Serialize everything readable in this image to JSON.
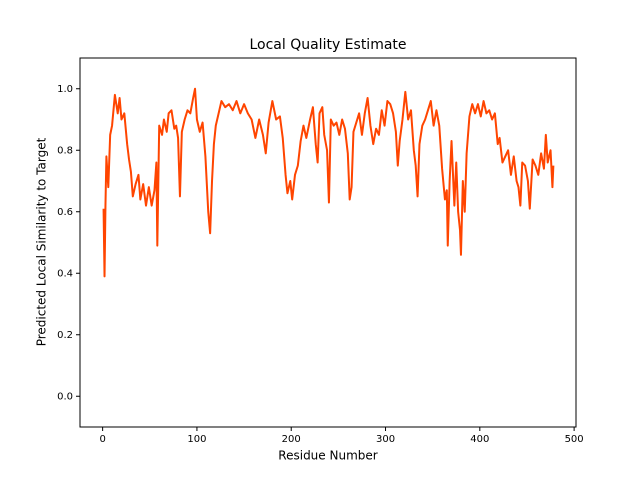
{
  "chart_data": {
    "type": "line",
    "title": "Local Quality Estimate",
    "x_label": "Residue Number",
    "y_label": "Predicted Local Similarity to Target",
    "x": [
      1,
      2,
      3,
      4,
      6,
      8,
      10,
      13,
      16,
      18,
      20,
      23,
      26,
      28,
      30,
      32,
      35,
      38,
      40,
      43,
      46,
      49,
      52,
      55,
      57,
      58,
      60,
      63,
      65,
      68,
      70,
      73,
      76,
      78,
      80,
      82,
      84,
      87,
      90,
      93,
      96,
      98,
      100,
      103,
      106,
      109,
      112,
      114,
      116,
      118,
      120,
      123,
      126,
      130,
      134,
      138,
      142,
      146,
      150,
      154,
      158,
      162,
      166,
      170,
      173,
      176,
      180,
      184,
      188,
      191,
      194,
      196,
      199,
      201,
      204,
      207,
      210,
      213,
      216,
      220,
      223,
      226,
      228,
      230,
      233,
      235,
      238,
      240,
      242,
      245,
      248,
      251,
      254,
      257,
      260,
      262,
      264,
      266,
      269,
      272,
      275,
      278,
      281,
      284,
      287,
      290,
      293,
      296,
      299,
      302,
      305,
      308,
      311,
      313,
      315,
      318,
      321,
      324,
      327,
      330,
      332,
      334,
      336,
      339,
      342,
      345,
      348,
      351,
      354,
      357,
      360,
      363,
      365,
      366,
      368,
      370,
      373,
      375,
      377,
      379,
      380,
      382,
      384,
      386,
      389,
      392,
      395,
      398,
      401,
      404,
      407,
      410,
      413,
      416,
      419,
      421,
      424,
      427,
      430,
      433,
      436,
      439,
      441,
      443,
      445,
      448,
      451,
      453,
      456,
      459,
      462,
      465,
      468,
      470,
      472,
      475,
      477,
      478
    ],
    "series": [
      {
        "color": "#ff4500",
        "values": [
          0.61,
          0.39,
          0.62,
          0.78,
          0.68,
          0.85,
          0.88,
          0.98,
          0.92,
          0.97,
          0.9,
          0.92,
          0.82,
          0.77,
          0.73,
          0.65,
          0.69,
          0.72,
          0.64,
          0.69,
          0.62,
          0.68,
          0.62,
          0.67,
          0.76,
          0.49,
          0.88,
          0.85,
          0.9,
          0.86,
          0.92,
          0.93,
          0.87,
          0.88,
          0.84,
          0.65,
          0.86,
          0.9,
          0.93,
          0.92,
          0.97,
          1.0,
          0.9,
          0.86,
          0.89,
          0.78,
          0.6,
          0.53,
          0.7,
          0.82,
          0.88,
          0.92,
          0.96,
          0.94,
          0.95,
          0.93,
          0.96,
          0.92,
          0.95,
          0.92,
          0.9,
          0.84,
          0.9,
          0.85,
          0.79,
          0.89,
          0.96,
          0.9,
          0.91,
          0.84,
          0.72,
          0.66,
          0.7,
          0.64,
          0.72,
          0.75,
          0.83,
          0.88,
          0.84,
          0.9,
          0.94,
          0.82,
          0.76,
          0.92,
          0.94,
          0.85,
          0.8,
          0.63,
          0.9,
          0.88,
          0.89,
          0.85,
          0.9,
          0.87,
          0.79,
          0.64,
          0.68,
          0.86,
          0.89,
          0.92,
          0.85,
          0.92,
          0.97,
          0.88,
          0.82,
          0.87,
          0.85,
          0.93,
          0.88,
          0.96,
          0.95,
          0.92,
          0.86,
          0.75,
          0.83,
          0.9,
          0.99,
          0.9,
          0.93,
          0.8,
          0.75,
          0.65,
          0.82,
          0.88,
          0.9,
          0.93,
          0.96,
          0.88,
          0.93,
          0.88,
          0.74,
          0.64,
          0.67,
          0.49,
          0.7,
          0.83,
          0.62,
          0.76,
          0.6,
          0.54,
          0.46,
          0.7,
          0.6,
          0.79,
          0.91,
          0.95,
          0.92,
          0.95,
          0.91,
          0.96,
          0.92,
          0.93,
          0.9,
          0.92,
          0.82,
          0.84,
          0.76,
          0.78,
          0.8,
          0.72,
          0.78,
          0.7,
          0.68,
          0.62,
          0.76,
          0.75,
          0.7,
          0.61,
          0.77,
          0.75,
          0.72,
          0.79,
          0.74,
          0.85,
          0.76,
          0.8,
          0.68,
          0.75
        ]
      }
    ],
    "xlim": [
      -24,
      502
    ],
    "ylim": [
      -0.1,
      1.1
    ],
    "xticks": [
      0,
      100,
      200,
      300,
      400,
      500
    ],
    "yticks": [
      {
        "value": 0,
        "label": "0.0"
      },
      0.2,
      0.4,
      0.6,
      0.8,
      {
        "value": 1,
        "label": "1.0"
      }
    ]
  }
}
